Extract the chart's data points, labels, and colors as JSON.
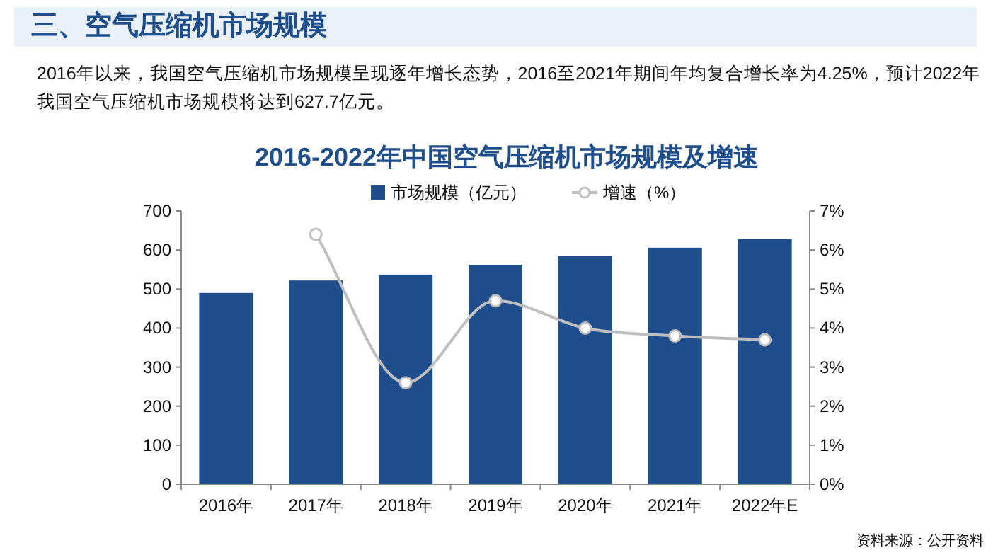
{
  "chart_data": {
    "type": "bar",
    "title": "2016-2022年中国空气压缩机市场规模及增速",
    "annotations": [
      "三、空气压缩机市场规模",
      "2016年以来，我国空气压缩机市场规模呈现逐年增长态势，2016至2021年期间年均复合增长率为4.25%，预计2022年我国空气压缩机市场规模将达到627.7亿元。",
      "资料来源：公开资料"
    ],
    "categories": [
      "2016年",
      "2017年",
      "2018年",
      "2019年",
      "2020年",
      "2021年",
      "2022年E"
    ],
    "series": [
      {
        "name": "市场规模（亿元）",
        "color": "#1f4e8c",
        "values": [
          490,
          522,
          537,
          562,
          584,
          606,
          628
        ]
      },
      {
        "name": "增速（%）",
        "type": "line",
        "axis": "y2",
        "color": "#bfbfbf",
        "marker": "circle",
        "values": [
          null,
          6.4,
          2.6,
          4.7,
          4.0,
          3.8,
          3.7
        ]
      }
    ],
    "ylim": [
      0,
      700
    ],
    "yticks": [
      0,
      100,
      200,
      300,
      400,
      500,
      600,
      700
    ],
    "y2lim": [
      0,
      7
    ],
    "y2ticks": [
      {
        "value": 0,
        "label": "0%"
      },
      {
        "value": 1,
        "label": "1%"
      },
      {
        "value": 2,
        "label": "2%"
      },
      {
        "value": 3,
        "label": "3%"
      },
      {
        "value": 4,
        "label": "4%"
      },
      {
        "value": 5,
        "label": "5%"
      },
      {
        "value": 6,
        "label": "6%"
      },
      {
        "value": 7,
        "label": "7%"
      }
    ],
    "legend": "top",
    "grid": false
  }
}
